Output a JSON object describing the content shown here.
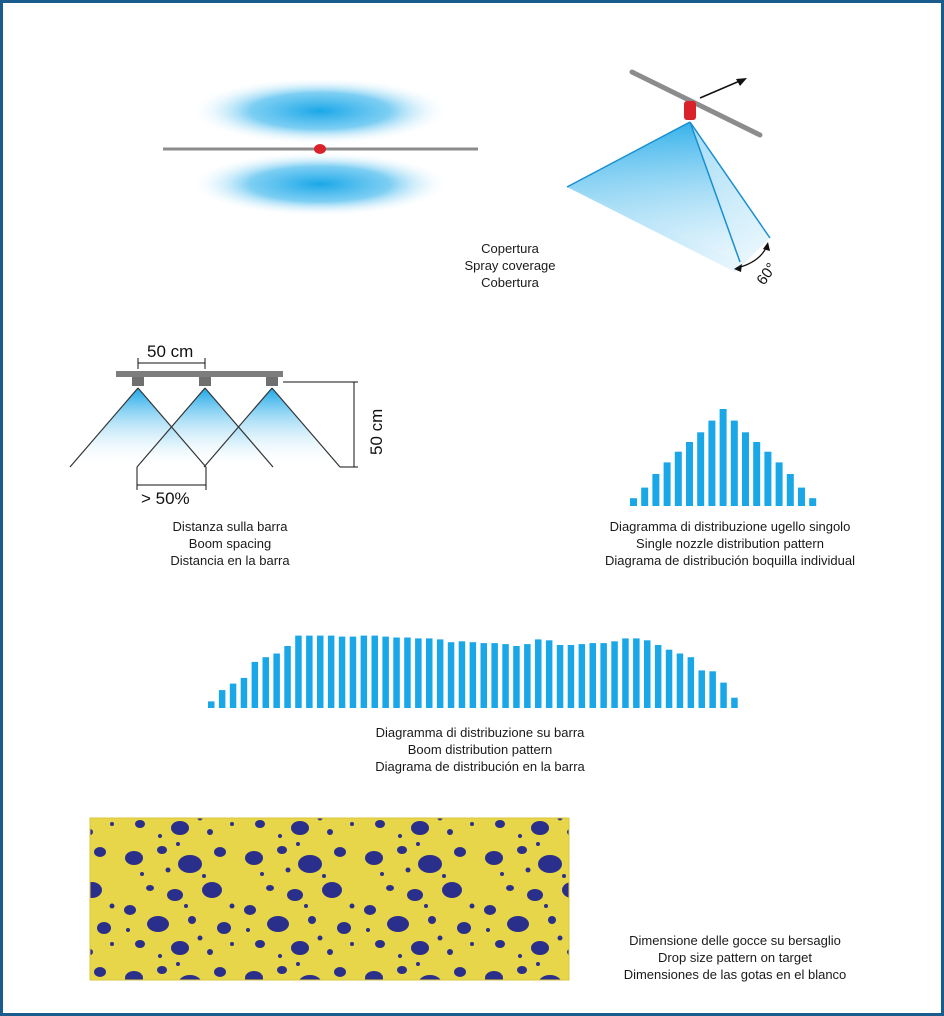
{
  "coverage": {
    "caption": [
      "Copertura",
      "Spray coverage",
      "Cobertura"
    ],
    "angle_label": "60°"
  },
  "spacing": {
    "width_label": "50 cm",
    "height_label": "50 cm",
    "overlap_label": "> 50%",
    "caption": [
      "Distanza sulla barra",
      "Boom spacing",
      "Distancia en la barra"
    ]
  },
  "single_pattern": {
    "caption": [
      "Diagramma di distribuzione ugello singolo",
      "Single nozzle distribution pattern",
      "Diagrama de distribución boquilla individual"
    ]
  },
  "boom_pattern": {
    "caption": [
      "Diagramma di distribuzione su barra",
      "Boom distribution pattern",
      "Diagrama de distribución en la barra"
    ]
  },
  "drops": {
    "caption": [
      "Dimensione delle gocce su bersaglio",
      "Drop size pattern on target",
      "Dimensiones de las gotas en el blanco"
    ]
  },
  "chart_data": [
    {
      "type": "bar",
      "values": [
        0.08,
        0.19,
        0.33,
        0.45,
        0.56,
        0.66,
        0.76,
        0.88,
        1.0,
        0.88,
        0.76,
        0.66,
        0.56,
        0.45,
        0.33,
        0.19,
        0.08
      ]
    },
    {
      "type": "bar",
      "values": [
        0.07,
        0.19,
        0.26,
        0.32,
        0.49,
        0.54,
        0.58,
        0.66,
        0.77,
        0.77,
        0.77,
        0.77,
        0.76,
        0.76,
        0.77,
        0.77,
        0.76,
        0.75,
        0.75,
        0.74,
        0.74,
        0.73,
        0.7,
        0.71,
        0.7,
        0.69,
        0.69,
        0.68,
        0.66,
        0.68,
        0.73,
        0.72,
        0.67,
        0.67,
        0.68,
        0.69,
        0.69,
        0.71,
        0.74,
        0.74,
        0.72,
        0.67,
        0.62,
        0.58,
        0.54,
        0.4,
        0.39,
        0.27,
        0.11
      ]
    }
  ],
  "colors": {
    "frame": "#1b5c8e",
    "spray": "#1aa7e8",
    "bar": "#1aa7e8",
    "nozzle": "#d9222a",
    "boom": "#8c8c8c",
    "drop_bg": "#e8d64a",
    "drop": "#2b2f8c"
  }
}
